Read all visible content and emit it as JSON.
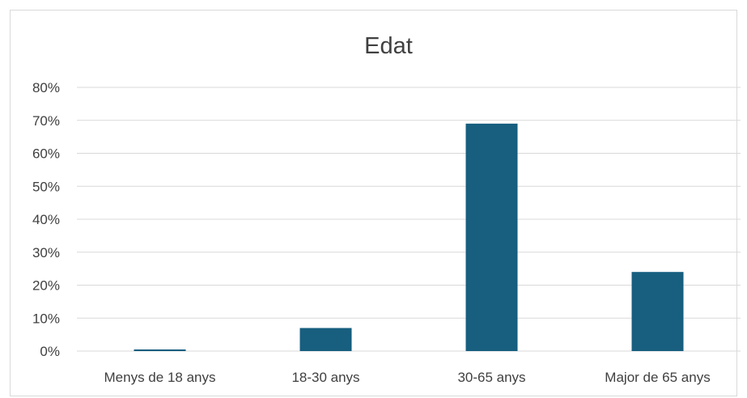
{
  "chart_data": {
    "type": "bar",
    "title": "Edat",
    "xlabel": "",
    "ylabel": "",
    "categories": [
      "Menys de 18 anys",
      "18-30 anys",
      "30-65 anys",
      "Major de 65 anys"
    ],
    "values": [
      0.5,
      7,
      69,
      24
    ],
    "ylim": [
      0,
      80
    ],
    "y_ticks": [
      0,
      10,
      20,
      30,
      40,
      50,
      60,
      70,
      80
    ],
    "y_tick_labels": [
      "0%",
      "10%",
      "20%",
      "30%",
      "40%",
      "50%",
      "60%",
      "70%",
      "80%"
    ],
    "grid": true,
    "legend": "none",
    "colors": {
      "bar": "#175e7f",
      "grid": "#d9d9d9",
      "text": "#404040"
    }
  }
}
